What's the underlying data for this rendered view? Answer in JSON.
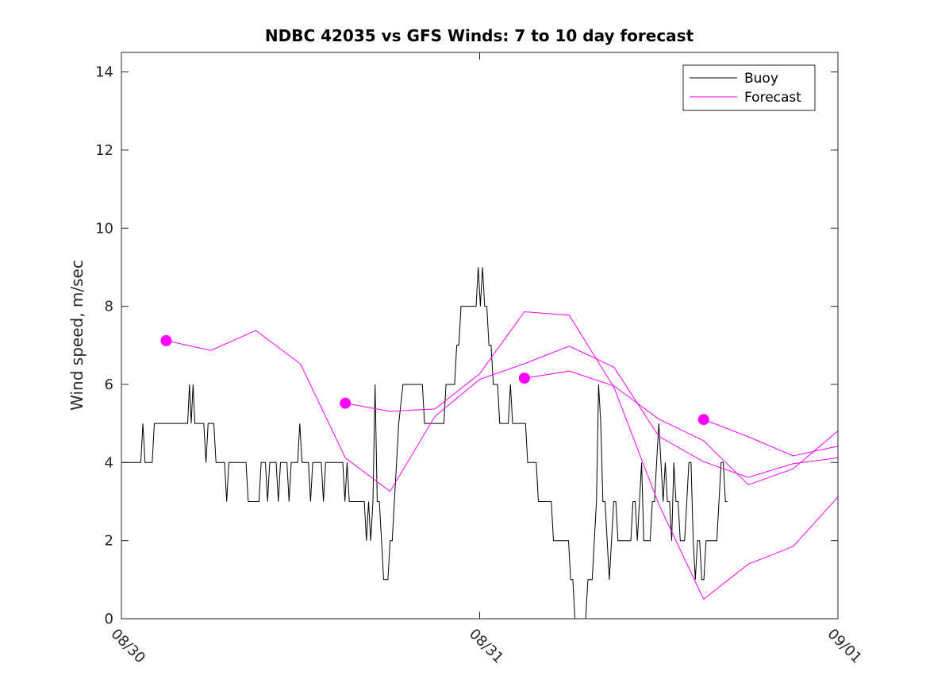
{
  "chart_data": {
    "type": "line",
    "title": "NDBC 42035 vs GFS Winds: 7 to 10 day forecast",
    "xlabel": "",
    "ylabel": "Wind speed, m/sec",
    "x_unit": "days since 08/30 00:00",
    "xlim": [
      0,
      2
    ],
    "ylim": [
      0,
      14.5
    ],
    "x_ticks": [
      {
        "value": 0,
        "label": "08/30"
      },
      {
        "value": 1,
        "label": "08/31"
      },
      {
        "value": 2,
        "label": "09/01"
      }
    ],
    "y_ticks": [
      {
        "value": 0,
        "label": "0"
      },
      {
        "value": 2,
        "label": "2"
      },
      {
        "value": 4,
        "label": "4"
      },
      {
        "value": 6,
        "label": "6"
      },
      {
        "value": 8,
        "label": "8"
      },
      {
        "value": 10,
        "label": "10"
      },
      {
        "value": 12,
        "label": "12"
      },
      {
        "value": 14,
        "label": "14"
      }
    ],
    "legend": {
      "position": "top-right",
      "entries": [
        {
          "label": "Buoy",
          "color": "#000000"
        },
        {
          "label": "Forecast",
          "color": "#ff00ff"
        }
      ]
    },
    "series": [
      {
        "name": "Buoy",
        "color": "#000000",
        "points": [
          [
            0.0,
            4
          ],
          [
            0.054,
            4
          ],
          [
            0.06,
            5
          ],
          [
            0.066,
            4
          ],
          [
            0.086,
            4
          ],
          [
            0.092,
            5
          ],
          [
            0.185,
            5
          ],
          [
            0.19,
            6
          ],
          [
            0.195,
            5
          ],
          [
            0.2,
            6
          ],
          [
            0.205,
            5
          ],
          [
            0.23,
            5
          ],
          [
            0.236,
            4
          ],
          [
            0.242,
            5
          ],
          [
            0.258,
            5
          ],
          [
            0.264,
            4
          ],
          [
            0.288,
            4
          ],
          [
            0.294,
            3
          ],
          [
            0.3,
            4
          ],
          [
            0.348,
            4
          ],
          [
            0.354,
            3
          ],
          [
            0.384,
            3
          ],
          [
            0.39,
            4
          ],
          [
            0.402,
            4
          ],
          [
            0.408,
            3
          ],
          [
            0.414,
            4
          ],
          [
            0.432,
            4
          ],
          [
            0.438,
            3
          ],
          [
            0.444,
            4
          ],
          [
            0.462,
            4
          ],
          [
            0.468,
            3
          ],
          [
            0.474,
            4
          ],
          [
            0.492,
            4
          ],
          [
            0.498,
            5
          ],
          [
            0.504,
            4
          ],
          [
            0.522,
            4
          ],
          [
            0.528,
            3
          ],
          [
            0.534,
            4
          ],
          [
            0.558,
            4
          ],
          [
            0.564,
            3
          ],
          [
            0.57,
            4
          ],
          [
            0.618,
            4
          ],
          [
            0.624,
            3
          ],
          [
            0.63,
            4
          ],
          [
            0.636,
            3
          ],
          [
            0.678,
            3
          ],
          [
            0.684,
            2
          ],
          [
            0.69,
            3
          ],
          [
            0.696,
            2
          ],
          [
            0.702,
            3
          ],
          [
            0.708,
            6
          ],
          [
            0.714,
            3
          ],
          [
            0.72,
            3
          ],
          [
            0.726,
            2
          ],
          [
            0.732,
            1
          ],
          [
            0.744,
            1
          ],
          [
            0.75,
            2
          ],
          [
            0.756,
            2
          ],
          [
            0.762,
            3
          ],
          [
            0.768,
            4
          ],
          [
            0.774,
            5
          ],
          [
            0.786,
            6
          ],
          [
            0.84,
            6
          ],
          [
            0.846,
            5
          ],
          [
            0.9,
            5
          ],
          [
            0.906,
            6
          ],
          [
            0.93,
            6
          ],
          [
            0.936,
            7
          ],
          [
            0.942,
            7
          ],
          [
            0.948,
            8
          ],
          [
            0.99,
            8
          ],
          [
            0.996,
            9
          ],
          [
            1.002,
            8
          ],
          [
            1.008,
            9
          ],
          [
            1.014,
            8
          ],
          [
            1.02,
            8
          ],
          [
            1.026,
            7
          ],
          [
            1.032,
            7
          ],
          [
            1.038,
            6
          ],
          [
            1.05,
            6
          ],
          [
            1.056,
            5
          ],
          [
            1.08,
            5
          ],
          [
            1.086,
            6
          ],
          [
            1.092,
            5
          ],
          [
            1.128,
            5
          ],
          [
            1.134,
            4
          ],
          [
            1.158,
            4
          ],
          [
            1.164,
            3
          ],
          [
            1.2,
            3
          ],
          [
            1.206,
            2
          ],
          [
            1.248,
            2
          ],
          [
            1.254,
            1
          ],
          [
            1.26,
            1
          ],
          [
            1.266,
            0
          ],
          [
            1.296,
            0
          ],
          [
            1.302,
            1
          ],
          [
            1.314,
            1
          ],
          [
            1.32,
            2
          ],
          [
            1.326,
            3
          ],
          [
            1.332,
            6
          ],
          [
            1.338,
            5
          ],
          [
            1.344,
            3
          ],
          [
            1.35,
            3
          ],
          [
            1.356,
            2
          ],
          [
            1.362,
            1
          ],
          [
            1.368,
            2
          ],
          [
            1.374,
            3
          ],
          [
            1.38,
            3
          ],
          [
            1.386,
            2
          ],
          [
            1.422,
            2
          ],
          [
            1.428,
            3
          ],
          [
            1.434,
            3
          ],
          [
            1.44,
            2
          ],
          [
            1.446,
            3
          ],
          [
            1.452,
            4
          ],
          [
            1.458,
            2
          ],
          [
            1.476,
            2
          ],
          [
            1.482,
            3
          ],
          [
            1.488,
            3
          ],
          [
            1.494,
            4
          ],
          [
            1.5,
            5
          ],
          [
            1.506,
            4
          ],
          [
            1.512,
            3
          ],
          [
            1.518,
            4
          ],
          [
            1.524,
            3
          ],
          [
            1.53,
            3
          ],
          [
            1.536,
            2
          ],
          [
            1.542,
            4
          ],
          [
            1.548,
            3
          ],
          [
            1.554,
            3
          ],
          [
            1.56,
            2
          ],
          [
            1.572,
            2
          ],
          [
            1.578,
            3
          ],
          [
            1.584,
            4
          ],
          [
            1.59,
            4
          ],
          [
            1.596,
            2
          ],
          [
            1.602,
            1
          ],
          [
            1.608,
            2
          ],
          [
            1.614,
            2
          ],
          [
            1.62,
            1
          ],
          [
            1.626,
            1
          ],
          [
            1.632,
            2
          ],
          [
            1.638,
            2
          ],
          [
            1.644,
            2
          ],
          [
            1.65,
            2
          ],
          [
            1.662,
            2
          ],
          [
            1.668,
            3
          ],
          [
            1.674,
            4
          ],
          [
            1.68,
            4
          ],
          [
            1.686,
            3
          ],
          [
            1.692,
            3
          ]
        ]
      },
      {
        "name": "Forecast",
        "color": "#ff00ff",
        "runs": [
          {
            "start": [
              0.125,
              7.12
            ],
            "points": [
              [
                0.125,
                7.12
              ],
              [
                0.25,
                6.87
              ],
              [
                0.375,
                7.38
              ],
              [
                0.5,
                6.52
              ],
              [
                0.625,
                4.12
              ],
              [
                0.75,
                3.26
              ],
              [
                0.875,
                5.18
              ],
              [
                1.0,
                6.13
              ],
              [
                1.125,
                6.53
              ],
              [
                1.25,
                6.98
              ],
              [
                1.375,
                6.44
              ],
              [
                1.5,
                4.67
              ],
              [
                1.625,
                4.02
              ],
              [
                1.75,
                3.62
              ],
              [
                1.875,
                3.97
              ],
              [
                2.0,
                4.12
              ]
            ]
          },
          {
            "start": [
              0.625,
              5.52
            ],
            "points": [
              [
                0.625,
                5.52
              ],
              [
                0.75,
                5.31
              ],
              [
                0.875,
                5.37
              ],
              [
                1.0,
                6.27
              ],
              [
                1.125,
                7.86
              ],
              [
                1.25,
                7.77
              ],
              [
                1.375,
                5.92
              ],
              [
                1.5,
                2.93
              ],
              [
                1.625,
                0.5
              ],
              [
                1.75,
                1.4
              ],
              [
                1.875,
                1.85
              ],
              [
                2.0,
                3.12
              ]
            ]
          },
          {
            "start": [
              1.125,
              6.16
            ],
            "points": [
              [
                1.125,
                6.16
              ],
              [
                1.25,
                6.34
              ],
              [
                1.375,
                5.96
              ],
              [
                1.5,
                5.11
              ],
              [
                1.625,
                4.56
              ],
              [
                1.75,
                3.43
              ],
              [
                1.875,
                3.84
              ],
              [
                2.0,
                4.81
              ]
            ]
          },
          {
            "start": [
              1.625,
              5.1
            ],
            "points": [
              [
                1.625,
                5.1
              ],
              [
                1.75,
                4.66
              ],
              [
                1.875,
                4.17
              ],
              [
                2.0,
                4.42
              ]
            ]
          }
        ]
      }
    ]
  }
}
